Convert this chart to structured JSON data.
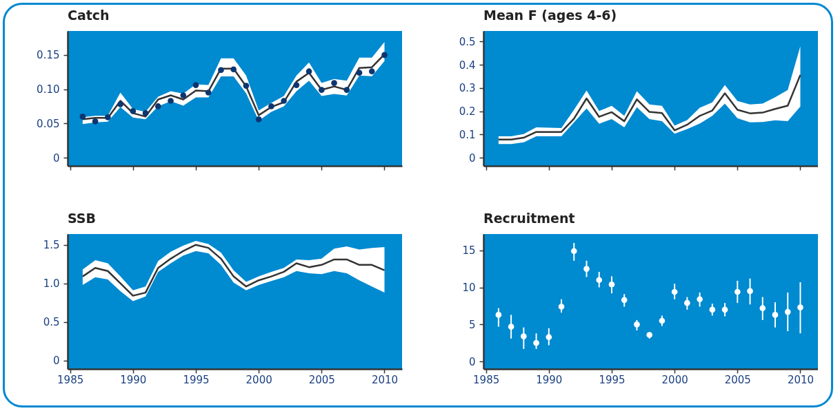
{
  "chart_data": [
    {
      "type": "line",
      "title": "Catch",
      "x": [
        1986,
        1987,
        1988,
        1989,
        1990,
        1991,
        1992,
        1993,
        1994,
        1995,
        1996,
        1997,
        1998,
        1999,
        2000,
        2001,
        2002,
        2003,
        2004,
        2005,
        2006,
        2007,
        2008,
        2009,
        2010
      ],
      "xlim": [
        1984.8,
        2011.4
      ],
      "xticks": [
        1985,
        1990,
        1995,
        2000,
        2005,
        2010
      ],
      "ylim": [
        -0.012,
        0.185
      ],
      "yticks": [
        0,
        {
          "value": 0.05,
          "label": "0.05"
        },
        {
          "value": 0.1,
          "label": "0.10"
        },
        {
          "value": 0.15,
          "label": "0.15"
        }
      ],
      "tick_labels": "y",
      "series": [
        {
          "color": "#333333",
          "values": [
            0.056,
            0.058,
            0.058,
            0.083,
            0.065,
            0.06,
            0.085,
            0.091,
            0.085,
            0.098,
            0.097,
            0.13,
            0.13,
            0.104,
            0.062,
            0.074,
            0.081,
            0.111,
            0.124,
            0.099,
            0.104,
            0.099,
            0.131,
            0.132,
            0.151
          ],
          "lower": [
            0.049,
            0.0515,
            0.0526,
            0.074,
            0.0587,
            0.056,
            0.075,
            0.0826,
            0.076,
            0.088,
            0.088,
            0.1186,
            0.1186,
            0.094,
            0.054,
            0.067,
            0.075,
            0.097,
            0.1125,
            0.09,
            0.093,
            0.0907,
            0.12,
            0.119,
            0.141
          ],
          "upper": [
            0.059,
            0.061,
            0.061,
            0.095,
            0.071,
            0.067,
            0.089,
            0.097,
            0.0935,
            0.107,
            0.106,
            0.145,
            0.145,
            0.12,
            0.069,
            0.08,
            0.09,
            0.12,
            0.139,
            0.109,
            0.115,
            0.1125,
            0.146,
            0.146,
            0.169
          ]
        },
        {
          "type": "scatter",
          "color": "#0d3570",
          "values": [
            0.06,
            0.053,
            0.059,
            0.078,
            0.068,
            0.065,
            0.075,
            0.083,
            0.091,
            0.106,
            0.095,
            0.128,
            0.129,
            0.105,
            0.056,
            0.075,
            0.083,
            0.106,
            0.126,
            0.099,
            0.109,
            0.099,
            0.124,
            0.126,
            0.15
          ]
        }
      ]
    },
    {
      "type": "line",
      "title": "Mean F (ages 4-6)",
      "x": [
        1986,
        1987,
        1988,
        1989,
        1990,
        1991,
        1992,
        1993,
        1994,
        1995,
        1996,
        1997,
        1998,
        1999,
        2000,
        2001,
        2002,
        2003,
        2004,
        2005,
        2006,
        2007,
        2008,
        2009,
        2010
      ],
      "xlim": [
        1984.8,
        2011.4
      ],
      "xticks": [
        1985,
        1990,
        1995,
        2000,
        2005,
        2010
      ],
      "ylim": [
        -0.035,
        0.545
      ],
      "yticks": [
        0,
        0.1,
        0.2,
        0.3,
        0.4,
        0.5
      ],
      "tick_labels": "y",
      "series": [
        {
          "color": "#333333",
          "values": [
            0.078,
            0.078,
            0.086,
            0.111,
            0.111,
            0.111,
            0.168,
            0.255,
            0.176,
            0.196,
            0.157,
            0.251,
            0.197,
            0.192,
            0.118,
            0.142,
            0.18,
            0.203,
            0.277,
            0.206,
            0.191,
            0.194,
            0.21,
            0.224,
            0.356
          ],
          "lower": [
            0.059,
            0.059,
            0.066,
            0.092,
            0.092,
            0.092,
            0.152,
            0.212,
            0.146,
            0.166,
            0.131,
            0.217,
            0.166,
            0.157,
            0.103,
            0.123,
            0.147,
            0.18,
            0.233,
            0.17,
            0.152,
            0.154,
            0.161,
            0.157,
            0.22
          ],
          "upper": [
            0.092,
            0.092,
            0.102,
            0.131,
            0.129,
            0.128,
            0.206,
            0.289,
            0.201,
            0.223,
            0.18,
            0.286,
            0.229,
            0.223,
            0.138,
            0.162,
            0.215,
            0.238,
            0.313,
            0.244,
            0.229,
            0.233,
            0.26,
            0.291,
            0.479
          ]
        }
      ]
    },
    {
      "type": "line",
      "title": "SSB",
      "x": [
        1986,
        1987,
        1988,
        1989,
        1990,
        1991,
        1992,
        1993,
        1994,
        1995,
        1996,
        1997,
        1998,
        1999,
        2000,
        2001,
        2002,
        2003,
        2004,
        2005,
        2006,
        2007,
        2008,
        2009,
        2010
      ],
      "xlim": [
        1984.8,
        2011.4
      ],
      "xticks": [
        1985,
        1990,
        1995,
        2000,
        2005,
        2010
      ],
      "ylim": [
        -0.11,
        1.64
      ],
      "yticks": [
        0,
        0.5,
        {
          "value": 1,
          "label": "1.0"
        },
        1.5
      ],
      "series": [
        {
          "color": "#333333",
          "values": [
            1.09,
            1.2,
            1.16,
            1.0,
            0.84,
            0.88,
            1.2,
            1.32,
            1.42,
            1.5,
            1.46,
            1.32,
            1.09,
            0.96,
            1.04,
            1.09,
            1.15,
            1.26,
            1.21,
            1.24,
            1.31,
            1.31,
            1.24,
            1.24,
            1.17
          ],
          "lower": [
            0.98,
            1.08,
            1.05,
            0.9,
            0.77,
            0.83,
            1.15,
            1.26,
            1.36,
            1.42,
            1.39,
            1.24,
            1.01,
            0.91,
            0.98,
            1.03,
            1.08,
            1.16,
            1.13,
            1.12,
            1.16,
            1.13,
            1.04,
            0.96,
            0.88
          ],
          "upper": [
            1.18,
            1.3,
            1.26,
            1.09,
            0.91,
            0.96,
            1.29,
            1.41,
            1.49,
            1.55,
            1.51,
            1.4,
            1.17,
            1.02,
            1.09,
            1.15,
            1.2,
            1.31,
            1.3,
            1.32,
            1.45,
            1.48,
            1.44,
            1.46,
            1.47
          ]
        }
      ]
    },
    {
      "type": "scatter",
      "title": "Recruitment",
      "x": [
        1986,
        1987,
        1988,
        1989,
        1990,
        1991,
        1992,
        1993,
        1994,
        1995,
        1996,
        1997,
        1998,
        1999,
        2000,
        2001,
        2002,
        2003,
        2004,
        2005,
        2006,
        2007,
        2008,
        2009,
        2010
      ],
      "xlim": [
        1984.8,
        2011.4
      ],
      "xticks": [
        1985,
        1990,
        1995,
        2000,
        2005,
        2010
      ],
      "ylim": [
        -1,
        17.2
      ],
      "yticks": [
        0,
        5,
        10,
        15
      ],
      "series": [
        {
          "color": "#ffffff",
          "values": [
            6.3,
            4.7,
            3.4,
            2.5,
            3.3,
            7.4,
            14.9,
            12.5,
            11,
            10.4,
            8.3,
            5,
            3.6,
            5.5,
            9.4,
            7.9,
            8.4,
            7,
            7,
            9.4,
            9.5,
            7.2,
            6.3,
            6.7,
            7.3
          ],
          "errors": [
            [
              4.7,
              7.2
            ],
            [
              3.1,
              6.3
            ],
            [
              1.7,
              4.6
            ],
            [
              1.7,
              3.8
            ],
            [
              2.2,
              4.5
            ],
            [
              6.6,
              8.4
            ],
            [
              13.6,
              16
            ],
            [
              11.4,
              13.6
            ],
            [
              10,
              12.1
            ],
            [
              9.2,
              11.5
            ],
            [
              7.4,
              9.1
            ],
            [
              4.2,
              5.6
            ],
            [
              3.1,
              3.9
            ],
            [
              4.8,
              6.2
            ],
            [
              8.4,
              10.5
            ],
            [
              7,
              8.7
            ],
            [
              7.4,
              9.3
            ],
            [
              6.2,
              7.8
            ],
            [
              6.1,
              7.9
            ],
            [
              7.9,
              10.9
            ],
            [
              7.7,
              11.2
            ],
            [
              5.6,
              8.7
            ],
            [
              4.6,
              8
            ],
            [
              4.1,
              9.3
            ],
            [
              3.8,
              10.7
            ]
          ]
        }
      ]
    }
  ]
}
